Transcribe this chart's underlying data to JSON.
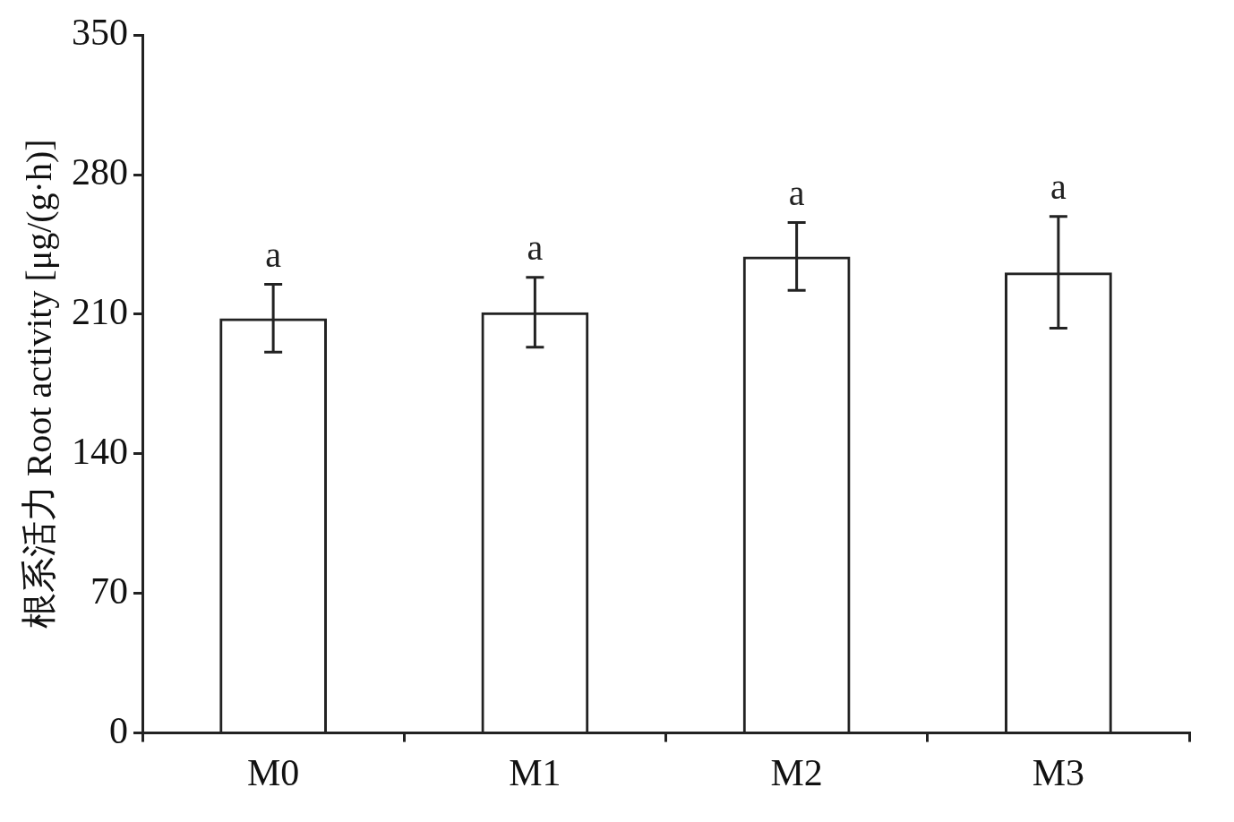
{
  "chart_data": {
    "type": "bar",
    "ylabel": "根系活力 Root activity [μg/(g·h)]",
    "categories": [
      "M0",
      "M1",
      "M2",
      "M3"
    ],
    "values": [
      208,
      211,
      239,
      231
    ],
    "errors": [
      17,
      17.5,
      17,
      28
    ],
    "color": "#222222",
    "ylim": [
      0,
      350
    ],
    "yticks": [
      0,
      70,
      140,
      210,
      280,
      350
    ],
    "grid": false,
    "legend": false,
    "annotations": [
      {
        "text": "a",
        "x": "M0",
        "y": 225
      },
      {
        "text": "a",
        "x": "M1",
        "y": 228.5
      },
      {
        "text": "a",
        "x": "M2",
        "y": 256
      },
      {
        "text": "a",
        "x": "M3",
        "y": 259
      }
    ]
  }
}
